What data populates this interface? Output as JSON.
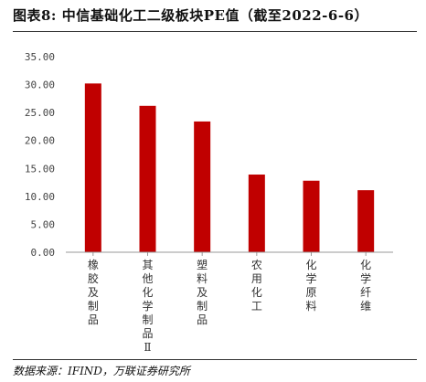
{
  "title": "图表8:  中信基础化工二级板块PE值（截至2022-6-6）",
  "source": "数据来源：IFIND，万联证券研究所",
  "chart_data": {
    "type": "bar",
    "categories": [
      "橡胶及制品",
      "其他化学制品Ⅱ",
      "塑料及制品",
      "农用化工",
      "化学原料",
      "化学纤维"
    ],
    "values": [
      30.2,
      26.2,
      23.4,
      13.9,
      12.8,
      11.1
    ],
    "ylim": [
      0,
      35
    ],
    "yticks": [
      "0.00",
      "5.00",
      "10.00",
      "15.00",
      "20.00",
      "25.00",
      "30.00",
      "35.00"
    ],
    "xlabel": "",
    "ylabel": "",
    "grid": false,
    "bar_color": "#c00000"
  }
}
